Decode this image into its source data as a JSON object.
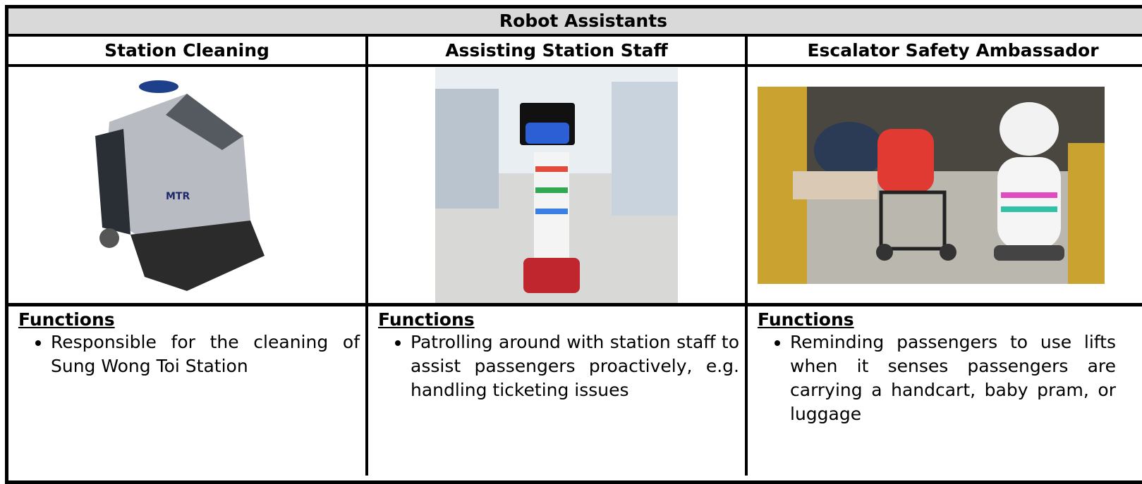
{
  "table": {
    "title": "Robot Assistants",
    "columns": [
      {
        "heading": "Station Cleaning",
        "functions_label": "Functions",
        "functions": [
          "Responsible for the cleaning of Sung Wong Toi Station"
        ]
      },
      {
        "heading": "Assisting Station Staff",
        "functions_label": "Functions",
        "functions": [
          "Patrolling around with station staff to assist passengers proactively, e.g. handling ticketing issues"
        ]
      },
      {
        "heading": "Escalator Safety Ambassador",
        "functions_label": "Functions",
        "functions": [
          "Reminding passengers to use lifts when it senses passengers are carrying a handcart, baby pram, or luggage"
        ]
      }
    ]
  }
}
